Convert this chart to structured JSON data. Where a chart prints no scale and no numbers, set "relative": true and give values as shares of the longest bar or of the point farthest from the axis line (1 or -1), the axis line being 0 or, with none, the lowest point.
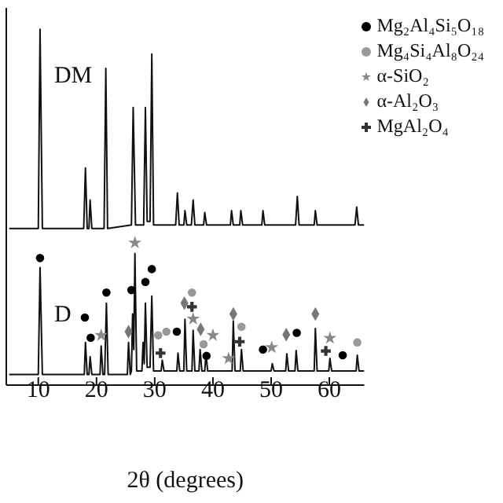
{
  "chart_data": {
    "type": "line",
    "xlabel": "2θ (degrees)",
    "relative": true,
    "xlim": [
      4.5,
      66
    ],
    "xticks": [
      10,
      20,
      30,
      40,
      50,
      60
    ],
    "legend": "top right",
    "tick_labels": "x",
    "series": [
      {
        "name": "DM",
        "color": "#111111",
        "marker": "none",
        "x": [
          5,
          10.0,
          10.3,
          10.7,
          17.8,
          18.1,
          18.4,
          18.7,
          18.9,
          19.2,
          21.3,
          21.6,
          21.9,
          26.0,
          26.3,
          26.7,
          28.1,
          28.4,
          28.7,
          29.2,
          29.5,
          29.8,
          33.6,
          33.9,
          34.2,
          35.0,
          35.2,
          35.5,
          36.3,
          36.6,
          36.9,
          38.4,
          38.6,
          38.9,
          43.0,
          43.2,
          43.5,
          44.6,
          44.8,
          45.1,
          48.4,
          48.6,
          48.9,
          54.2,
          54.5,
          54.8,
          57.4,
          57.6,
          57.9,
          64.4,
          64.7,
          65.0,
          66
        ],
        "values": [
          0.44,
          0.44,
          1.0,
          0.44,
          0.44,
          0.61,
          0.44,
          0.44,
          0.52,
          0.44,
          0.44,
          0.89,
          0.44,
          0.45,
          0.78,
          0.45,
          0.45,
          0.78,
          0.46,
          0.46,
          0.93,
          0.45,
          0.45,
          0.54,
          0.45,
          0.45,
          0.49,
          0.45,
          0.45,
          0.52,
          0.45,
          0.45,
          0.485,
          0.45,
          0.45,
          0.49,
          0.45,
          0.45,
          0.49,
          0.45,
          0.45,
          0.49,
          0.45,
          0.45,
          0.53,
          0.45,
          0.45,
          0.49,
          0.45,
          0.45,
          0.5,
          0.45,
          0.45
        ]
      },
      {
        "name": "D",
        "color": "#111111",
        "marker": "none",
        "x": [
          5,
          10.0,
          10.3,
          10.7,
          17.9,
          18.1,
          18.4,
          18.7,
          18.9,
          19.2,
          20.6,
          20.8,
          21.1,
          21.4,
          21.7,
          22.0,
          25.3,
          25.5,
          25.8,
          26.0,
          26.2,
          26.4,
          26.6,
          26.9,
          27.8,
          28.0,
          28.2,
          28.4,
          28.7,
          29.2,
          29.5,
          29.8,
          31.1,
          31.3,
          31.6,
          33.8,
          34.0,
          34.3,
          35.0,
          35.2,
          35.5,
          36.4,
          36.6,
          36.9,
          37.6,
          37.8,
          38.1,
          38.6,
          38.8,
          39.1,
          43.3,
          43.5,
          43.8,
          44.7,
          44.9,
          45.2,
          50.0,
          50.2,
          50.5,
          52.5,
          52.7,
          53.0,
          54.1,
          54.3,
          54.6,
          57.4,
          57.6,
          57.9,
          59.9,
          60.1,
          60.4,
          64.6,
          64.8,
          65.1,
          66
        ],
        "values": [
          0.03,
          0.03,
          0.33,
          0.03,
          0.03,
          0.12,
          0.03,
          0.03,
          0.08,
          0.03,
          0.03,
          0.11,
          0.03,
          0.03,
          0.23,
          0.03,
          0.03,
          0.12,
          0.03,
          0.04,
          0.2,
          0.1,
          0.37,
          0.04,
          0.04,
          0.12,
          0.06,
          0.23,
          0.05,
          0.05,
          0.25,
          0.04,
          0.04,
          0.07,
          0.04,
          0.04,
          0.09,
          0.04,
          0.04,
          0.185,
          0.04,
          0.04,
          0.154,
          0.04,
          0.04,
          0.1,
          0.04,
          0.04,
          0.088,
          0.04,
          0.04,
          0.18,
          0.04,
          0.04,
          0.1,
          0.04,
          0.04,
          0.06,
          0.04,
          0.04,
          0.088,
          0.04,
          0.04,
          0.097,
          0.04,
          0.04,
          0.159,
          0.04,
          0.04,
          0.075,
          0.04,
          0.04,
          0.084,
          0.04,
          0.04
        ]
      },
      {
        "name": "Mg₂Al₄Si₅O₁₈",
        "type": "scatter",
        "color": "#000000",
        "marker": "circle",
        "x": [
          10.3,
          18.0,
          19.0,
          21.7,
          26.0,
          28.4,
          29.5,
          33.8,
          38.9,
          48.6,
          54.4,
          62.3
        ],
        "values": [
          0.357,
          0.19,
          0.133,
          0.26,
          0.267,
          0.29,
          0.326,
          0.15,
          0.082,
          0.1,
          0.147,
          0.084
        ]
      },
      {
        "name": "Mg₄Si₄Al₈O₂₄",
        "type": "scatter",
        "color": "#999999",
        "marker": "circle",
        "x": [
          30.6,
          32.0,
          36.4,
          38.4,
          44.9,
          64.8
        ],
        "values": [
          0.14,
          0.15,
          0.26,
          0.115,
          0.164,
          0.12
        ]
      },
      {
        "name": "α-SiO₂",
        "type": "scatter",
        "color": "#888888",
        "marker": "star",
        "x": [
          20.8,
          26.6,
          36.6,
          40.0,
          42.7,
          50.1,
          60.1
        ],
        "values": [
          0.14,
          0.4,
          0.186,
          0.14,
          0.075,
          0.106,
          0.132
        ]
      },
      {
        "name": "α-Al₂O₃",
        "type": "scatter",
        "color": "#777777",
        "marker": "diamond",
        "x": [
          25.5,
          35.1,
          37.9,
          43.5,
          52.6,
          57.6
        ],
        "values": [
          0.15,
          0.23,
          0.157,
          0.2,
          0.142,
          0.2
        ]
      },
      {
        "name": "MgAl₂O₄",
        "type": "scatter",
        "color": "#333333",
        "marker": "cross",
        "x": [
          31.0,
          36.4,
          44.6,
          59.4
        ],
        "values": [
          0.09,
          0.22,
          0.122,
          0.096
        ]
      }
    ]
  }
}
